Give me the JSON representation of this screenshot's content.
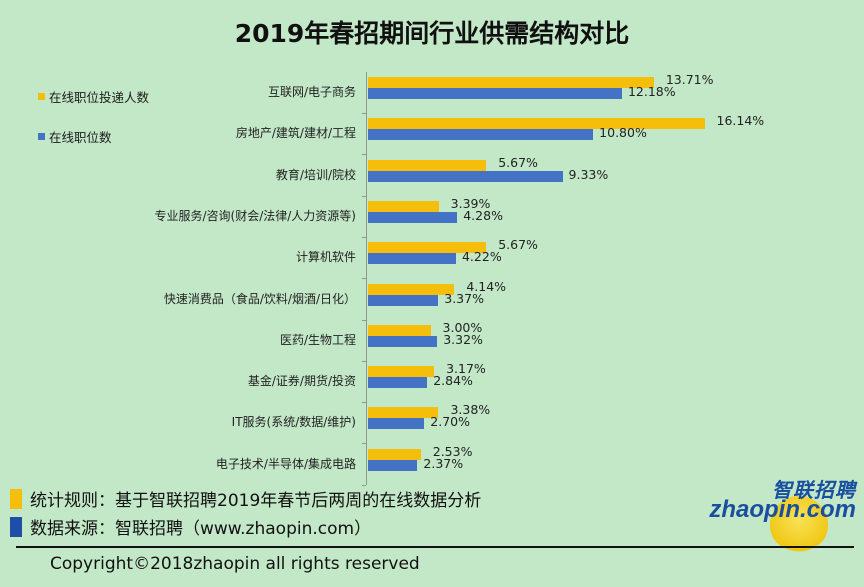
{
  "title": "2019年春招期间行业供需结构对比",
  "legend": [
    {
      "label": "在线职位投递人数",
      "color": "#f5be0b"
    },
    {
      "label": "在线职位数",
      "color": "#4472c4"
    }
  ],
  "footer": {
    "rule_note": "统计规则：基于智联招聘2019年春节后两周的在线数据分析",
    "source_note": "数据来源：智联招聘（www.zhaopin.com）",
    "rule_swatch_color": "#f5be0b",
    "source_swatch_color": "#1f4ea8",
    "copyright": "Copyright©2018zhaopin all rights reserved"
  },
  "logo": {
    "cn": "智联招聘",
    "en": "zhaopin.com"
  },
  "chart_data": {
    "type": "bar",
    "orientation": "horizontal",
    "title": "2019年春招期间行业供需结构对比",
    "xlabel": "",
    "ylabel": "",
    "grid": false,
    "legend_position": "left",
    "categories": [
      "互联网/电子商务",
      "房地产/建筑/建材/工程",
      "教育/培训/院校",
      "专业服务/咨询(财会/法律/人力资源等)",
      "计算机软件",
      "快速消费品（食品/饮料/烟酒/日化）",
      "医药/生物工程",
      "基金/证券/期货/投资",
      "IT服务(系统/数据/维护)",
      "电子技术/半导体/集成电路"
    ],
    "series": [
      {
        "name": "在线职位投递人数",
        "color": "#f5be0b",
        "values": [
          13.71,
          16.14,
          5.67,
          3.39,
          5.67,
          4.14,
          3.0,
          3.17,
          3.38,
          2.53
        ],
        "labels": [
          "13.71%",
          "16.14%",
          "5.67%",
          "3.39%",
          "5.67%",
          "4.14%",
          "3.00%",
          "3.17%",
          "3.38%",
          "2.53%"
        ]
      },
      {
        "name": "在线职位数",
        "color": "#4472c4",
        "values": [
          12.18,
          10.8,
          9.33,
          4.28,
          4.22,
          3.37,
          3.32,
          2.84,
          2.7,
          2.37
        ],
        "labels": [
          "12.18%",
          "10.80%",
          "9.33%",
          "4.28%",
          "4.22%",
          "3.37%",
          "3.32%",
          "2.84%",
          "2.70%",
          "2.37%"
        ]
      }
    ],
    "unit": "%"
  }
}
